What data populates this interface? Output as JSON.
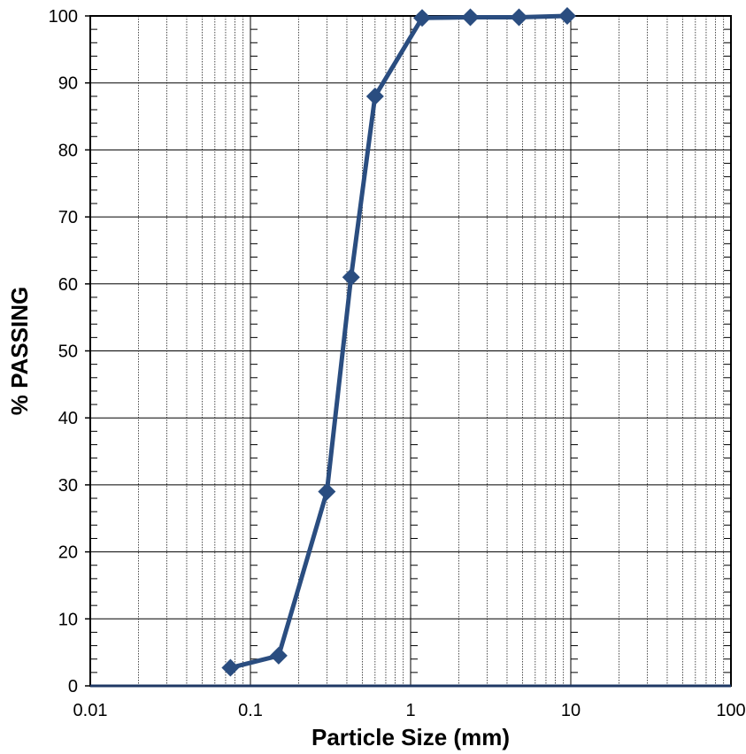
{
  "chart_data": {
    "type": "line",
    "title": "",
    "xlabel": "Particle Size (mm)",
    "ylabel": "% PASSING",
    "x_scale": "log",
    "xlim": [
      0.01,
      100
    ],
    "ylim": [
      0,
      100
    ],
    "x_ticks": [
      "0.01",
      "0.1",
      "1",
      "10",
      "100"
    ],
    "y_ticks": [
      "0",
      "10",
      "20",
      "30",
      "40",
      "50",
      "60",
      "70",
      "80",
      "90",
      "100"
    ],
    "grid": true,
    "legend": "none",
    "series": [
      {
        "x": [
          0.075,
          0.15,
          0.3,
          0.425,
          0.6,
          1.18,
          2.36,
          4.75,
          9.5
        ],
        "y": [
          2.7,
          4.5,
          29,
          61,
          88,
          99.7,
          99.8,
          99.8,
          100
        ]
      }
    ],
    "series_color": "#2a4d80",
    "marker": "diamond"
  }
}
